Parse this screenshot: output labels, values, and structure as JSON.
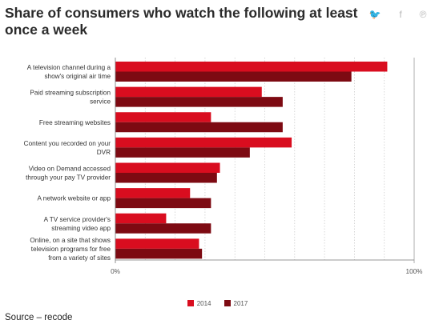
{
  "title": "Share of consumers who watch the following at least once a week",
  "share_icons": [
    {
      "name": "twitter-icon",
      "glyph": "🐦"
    },
    {
      "name": "facebook-icon",
      "glyph": "f"
    },
    {
      "name": "pinterest-icon",
      "glyph": "℗"
    }
  ],
  "source": "Source – recode",
  "colors": {
    "2014": "#d90d1f",
    "2017": "#7d0a12"
  },
  "chart_data": {
    "type": "bar",
    "orientation": "horizontal",
    "categories": [
      [
        "A television channel during a",
        "show's original air time"
      ],
      [
        "Paid streaming subscription",
        "service"
      ],
      [
        "Free streaming websites"
      ],
      [
        "Content you recorded on your",
        "DVR"
      ],
      [
        "Video on Demand accessed",
        "through your pay TV provider"
      ],
      [
        "A network website or app"
      ],
      [
        "A TV service provider's",
        "streaming video app"
      ],
      [
        "Online, on a site that shows",
        "television programs for free",
        "from a variety of sites"
      ]
    ],
    "series": [
      {
        "name": "2014",
        "values": [
          91,
          49,
          32,
          59,
          35,
          25,
          17,
          28
        ]
      },
      {
        "name": "2017",
        "values": [
          79,
          56,
          56,
          45,
          34,
          32,
          32,
          29
        ]
      }
    ],
    "xlim": [
      0,
      100
    ],
    "tick_labels": [
      "0%",
      "100%"
    ],
    "grid": true,
    "legend_position": "bottom"
  }
}
